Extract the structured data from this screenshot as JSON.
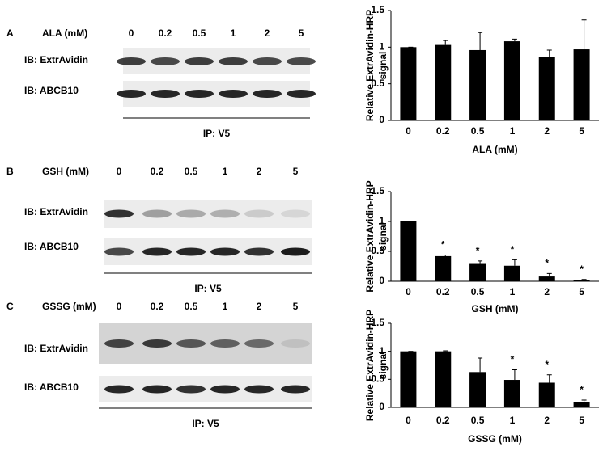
{
  "blots": [
    {
      "label": "A",
      "header": "ALA (mM)",
      "lanes": [
        "0",
        "0.2",
        "0.5",
        "1",
        "2",
        "5"
      ],
      "rows": [
        "IB: ExtrAvidin",
        "IB: ABCB10"
      ],
      "footer": "IP: V5"
    },
    {
      "label": "B",
      "header": "GSH (mM)",
      "lanes": [
        "0",
        "0.2",
        "0.5",
        "1",
        "2",
        "5"
      ],
      "rows": [
        "IB: ExtrAvidin",
        "IB: ABCB10"
      ],
      "footer": "IP: V5"
    },
    {
      "label": "C",
      "header": "GSSG (mM)",
      "lanes": [
        "0",
        "0.2",
        "0.5",
        "1",
        "2",
        "5"
      ],
      "rows": [
        "IB: ExtrAvidin",
        "IB: ABCB10"
      ],
      "footer": "IP: V5"
    }
  ],
  "chart_data": [
    {
      "type": "bar",
      "xlabel": "ALA (mM)",
      "ylabel": [
        "Relative ExtrAvidin-HRP",
        "signal"
      ],
      "categories": [
        "0",
        "0.2",
        "0.5",
        "1",
        "2",
        "5"
      ],
      "values": [
        1.0,
        1.03,
        0.96,
        1.08,
        0.87,
        0.97
      ],
      "errors": [
        0.0,
        0.06,
        0.24,
        0.03,
        0.09,
        0.4
      ],
      "color": "#000000",
      "ylim": [
        0,
        1.5
      ],
      "yticks": [
        0,
        0.5,
        1,
        1.5
      ]
    },
    {
      "type": "bar",
      "xlabel": "GSH (mM)",
      "ylabel": [
        "Relative ExtrAvidin-HRP",
        "signal"
      ],
      "categories": [
        "0",
        "0.2",
        "0.5",
        "1",
        "2",
        "5"
      ],
      "values": [
        1.0,
        0.42,
        0.29,
        0.26,
        0.08,
        0.02
      ],
      "errors": [
        0.0,
        0.02,
        0.05,
        0.1,
        0.05,
        0.01
      ],
      "significance": [
        null,
        "*",
        "*",
        "*",
        "*",
        "*"
      ],
      "color": "#000000",
      "ylim": [
        0,
        1.5
      ],
      "yticks": [
        0,
        0.5,
        1,
        1.5
      ]
    },
    {
      "type": "bar",
      "xlabel": "GSSG (mM)",
      "ylabel": [
        "Relative ExtrAvidin-HRP",
        "signal"
      ],
      "categories": [
        "0",
        "0.2",
        "0.5",
        "1",
        "2",
        "5"
      ],
      "values": [
        1.0,
        1.0,
        0.63,
        0.49,
        0.44,
        0.09
      ],
      "errors": [
        0.0,
        0.01,
        0.25,
        0.18,
        0.14,
        0.04
      ],
      "significance": [
        null,
        null,
        null,
        "*",
        "*",
        "*"
      ],
      "color": "#000000",
      "ylim": [
        0,
        1.5
      ],
      "yticks": [
        0,
        0.5,
        1,
        1.5
      ]
    }
  ]
}
